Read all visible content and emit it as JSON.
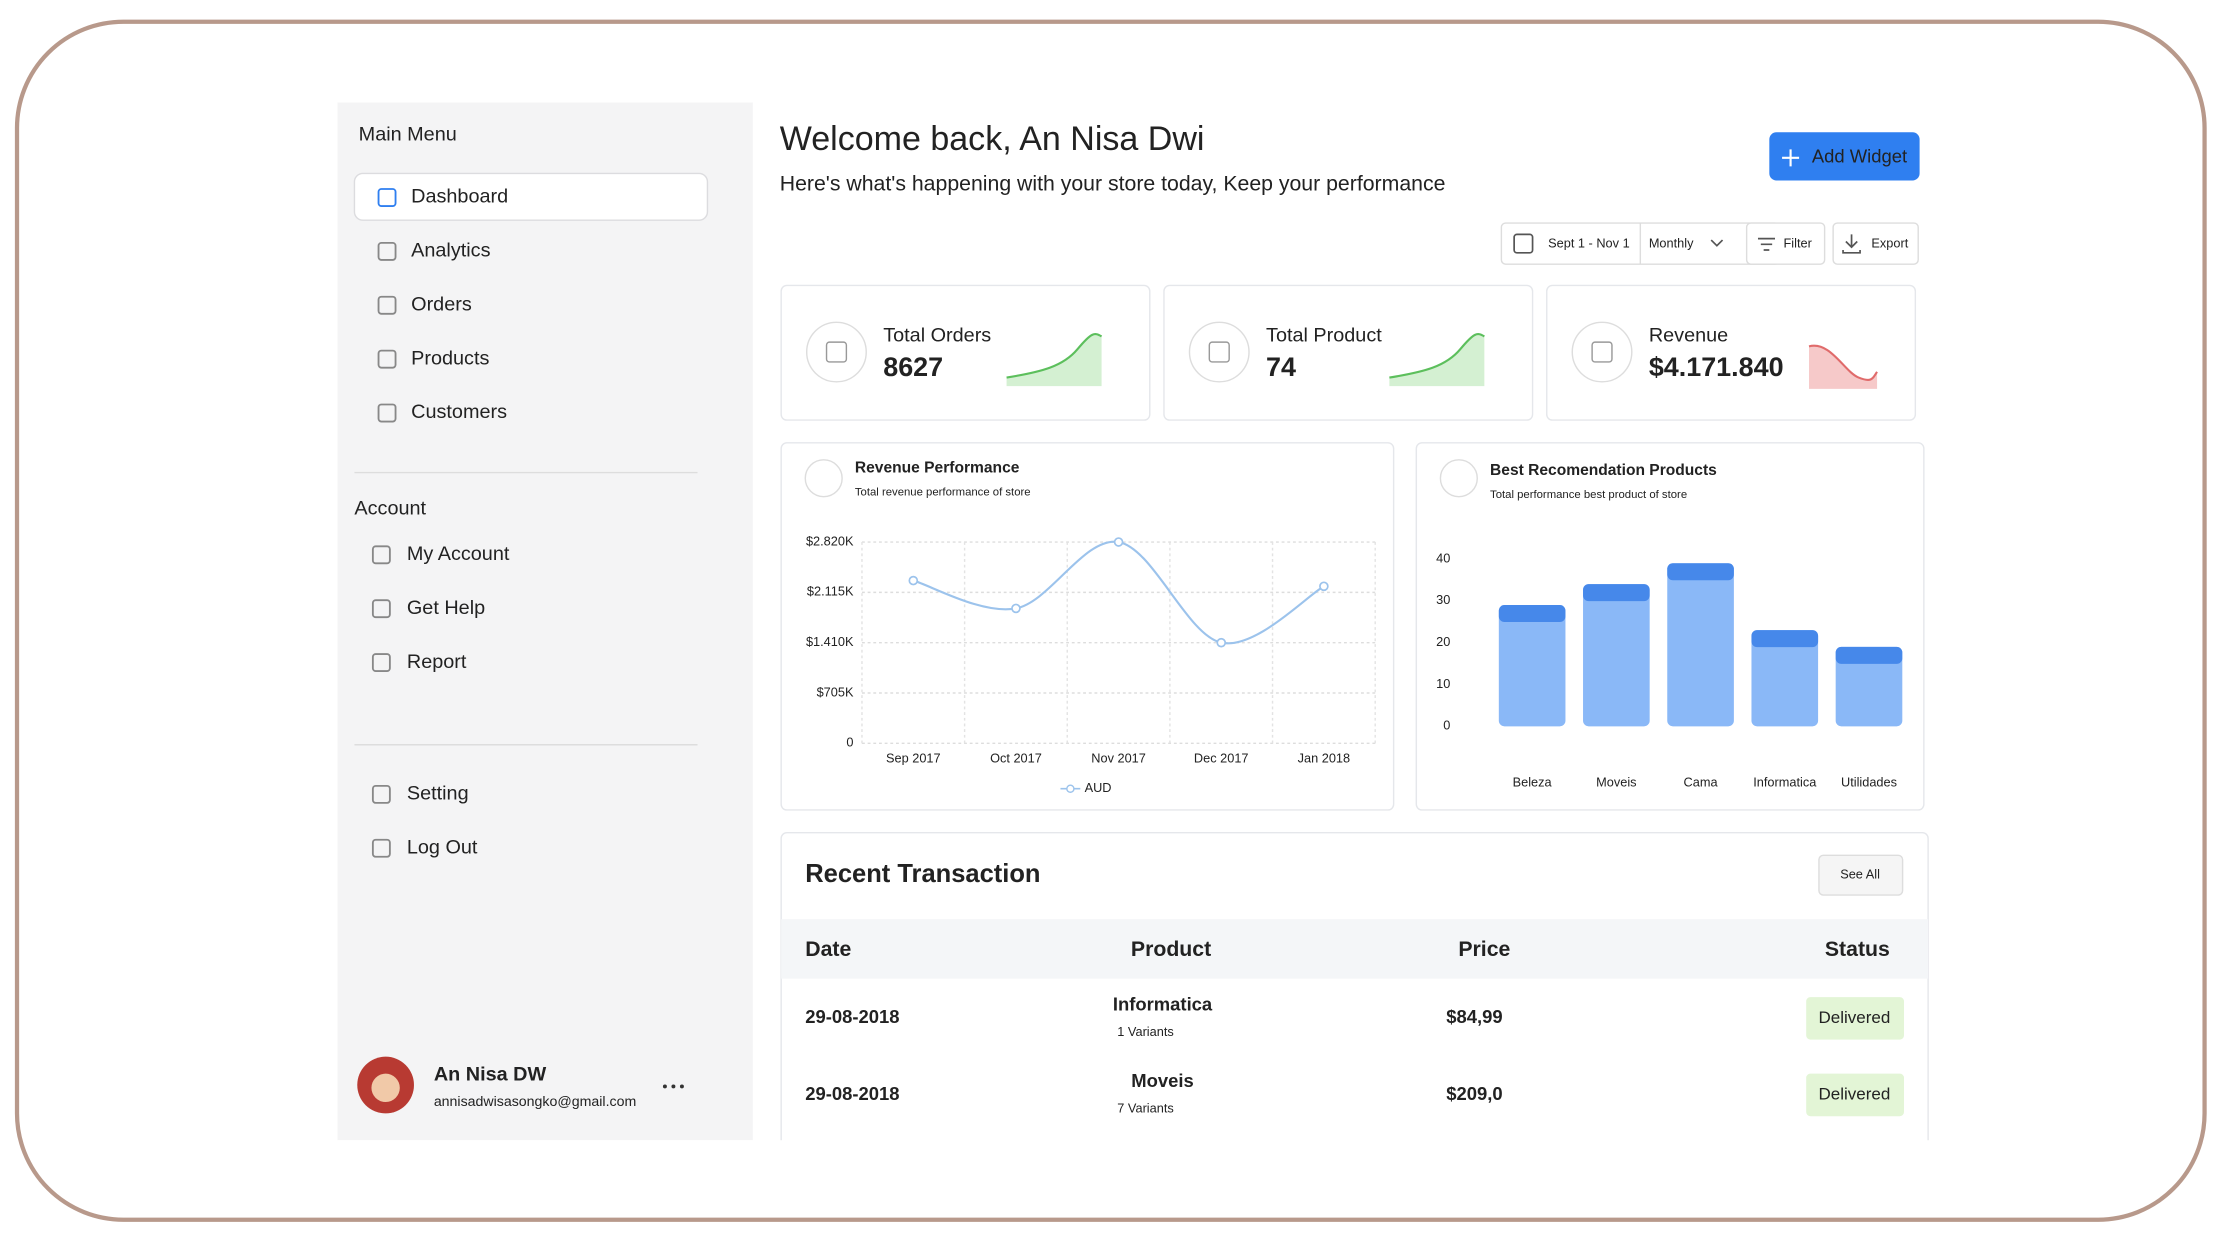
{
  "sidebar": {
    "main_menu_title": "Main Menu",
    "main_menu": [
      "Dashboard",
      "Analytics",
      "Orders",
      "Products",
      "Customers"
    ],
    "account_title": "Account",
    "account": [
      "My Account",
      "Get Help",
      "Report"
    ],
    "settings": [
      "Setting",
      "Log Out"
    ],
    "user": {
      "name": "An Nisa DW",
      "email": "annisadwisasongko@gmail.com"
    }
  },
  "header": {
    "title": "Welcome back, An Nisa Dwi",
    "subtitle": "Here's what's happening with your store today, Keep your performance",
    "add_widget": "Add Widget"
  },
  "toolbar": {
    "date_range": "Sept 1 - Nov 1",
    "period": "Monthly",
    "filter": "Filter",
    "export": "Export"
  },
  "stats": [
    {
      "label": "Total Orders",
      "value": 8627
    },
    {
      "label": "Total Product",
      "value": 74
    },
    {
      "label": "Revenue",
      "value": "$4.171.840"
    }
  ],
  "charts": [
    {
      "type": "line",
      "title": "Revenue Performance",
      "subtitle": "Total revenue performance of store",
      "categories": [
        "Sep 2017",
        "Oct 2017",
        "Nov 2017",
        "Dec 2017",
        "Jan 2018"
      ],
      "series": [
        {
          "name": "AUD",
          "color": "#9cc3ec",
          "values": [
            2280000,
            1890000,
            2820000,
            1410000,
            2200000
          ]
        }
      ],
      "ylim": [
        0,
        2820000
      ],
      "yticks": [
        0,
        {
          "value": 705000,
          "label": "$705K"
        },
        {
          "value": 1410000,
          "label": "$1.410K"
        },
        {
          "value": 2115000,
          "label": "$2.115K"
        },
        {
          "value": 2820000,
          "label": "$2.820K"
        }
      ],
      "grid": true
    },
    {
      "type": "bar",
      "title": "Best Recomendation Products",
      "subtitle": "Total performance best product of store",
      "categories": [
        "Beleza",
        "Moveis",
        "Cama",
        "Informatica",
        "Utilidades"
      ],
      "values": [
        29,
        34,
        39,
        23,
        19
      ],
      "color": "#8ab8f7",
      "cap_color": "#3a7fe8",
      "ylim": [
        0,
        40
      ],
      "yticks": [
        0,
        10,
        20,
        30,
        40
      ]
    }
  ],
  "transactions": {
    "title": "Recent Transaction",
    "see_all": "See All",
    "columns": [
      "Date",
      "Product",
      "Price",
      "Status"
    ],
    "rows": [
      {
        "date": "29-08-2018",
        "product": "Informatica",
        "variants": "1 Variants",
        "price": "$84,99",
        "status": "Delivered"
      },
      {
        "date": "29-08-2018",
        "product": "Moveis",
        "variants": "7 Variants",
        "price": "$209,0",
        "status": "Delivered"
      }
    ]
  }
}
